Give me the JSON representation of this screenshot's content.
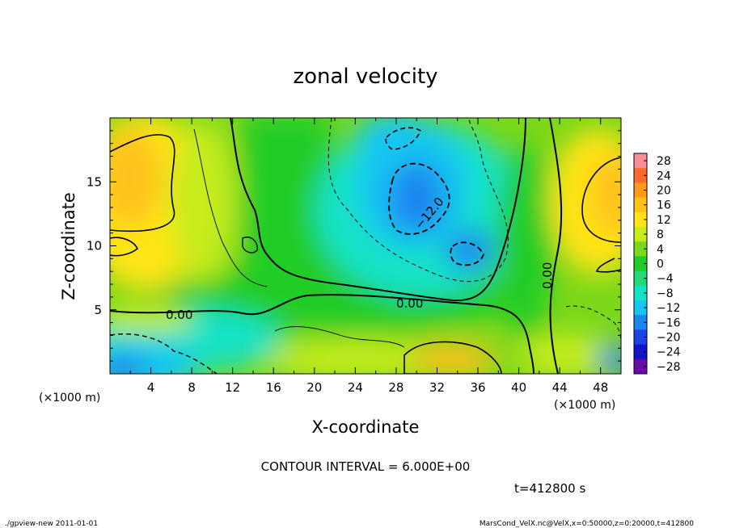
{
  "chart_data": {
    "type": "heatmap",
    "title": "zonal velocity",
    "xlabel": "X-coordinate",
    "ylabel": "Z-coordinate",
    "x_unit": "(×1000 m)",
    "y_unit": "(×1000 m)",
    "xlim": [
      0,
      50
    ],
    "ylim": [
      0,
      20
    ],
    "x_ticks": [
      "4",
      "8",
      "12",
      "16",
      "20",
      "24",
      "28",
      "32",
      "36",
      "40",
      "44",
      "48"
    ],
    "y_ticks": [
      "5",
      "10",
      "15"
    ],
    "colorbar": {
      "levels": [
        "28",
        "24",
        "20",
        "16",
        "12",
        "8",
        "4",
        "0",
        "−4",
        "−8",
        "−12",
        "−16",
        "−20",
        "−24",
        "−28"
      ],
      "colors": [
        "#ff8c9a",
        "#ff6a2a",
        "#ff9a1a",
        "#ffc21a",
        "#ffe419",
        "#c8ec1a",
        "#7cd81a",
        "#22cc28",
        "#22d878",
        "#12e2c6",
        "#16c6f2",
        "#1a86f0",
        "#1a44e6",
        "#1414c8",
        "#6a0aa8"
      ]
    },
    "contour_labels": [
      "0.00",
      "0.00",
      "−12.0",
      "0.00"
    ],
    "contour_interval_text": "CONTOUR INTERVAL = 6.000E+00",
    "time_text": "t=412800 s",
    "field_sample": {
      "x": [
        0,
        5,
        10,
        15,
        20,
        25,
        30,
        35,
        40,
        45,
        50
      ],
      "z": [
        2,
        6,
        10,
        14,
        18
      ],
      "values": [
        [
          -10,
          -4,
          0,
          0,
          0,
          4,
          12,
          14,
          2,
          0,
          -8
        ],
        [
          0,
          4,
          4,
          0,
          0,
          0,
          0,
          0,
          0,
          4,
          8
        ],
        [
          6,
          8,
          8,
          0,
          -4,
          -8,
          -12,
          -14,
          -6,
          4,
          8
        ],
        [
          14,
          12,
          8,
          0,
          -6,
          -10,
          -12,
          -10,
          -6,
          8,
          12
        ],
        [
          10,
          10,
          8,
          -2,
          -6,
          -8,
          -14,
          -10,
          -4,
          4,
          8
        ]
      ]
    }
  },
  "footer": {
    "left": "./gpview-new  2011-01-01",
    "right": "MarsCond_VelX.nc@VelX,x=0:50000,z=0:20000,t=412800"
  }
}
